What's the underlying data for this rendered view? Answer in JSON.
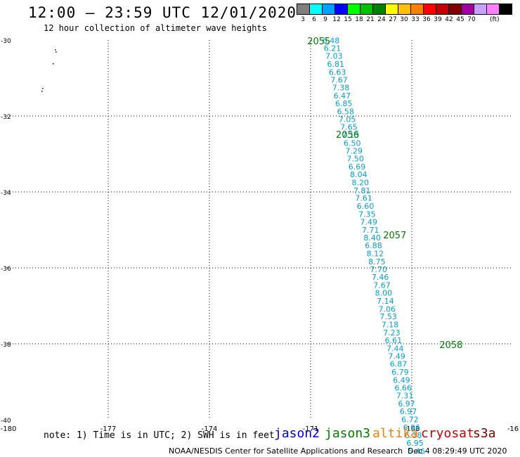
{
  "header": {
    "title": "12:00 – 23:59 UTC 12/01/2020",
    "subtitle": "12 hour collection of altimeter wave heights"
  },
  "color_scale": {
    "unit": "(ft)",
    "bins": [
      {
        "label": "3",
        "color": "#7f7f7f"
      },
      {
        "label": "6",
        "color": "#00ffff"
      },
      {
        "label": "9",
        "color": "#00a0ff"
      },
      {
        "label": "12",
        "color": "#0000ff"
      },
      {
        "label": "15",
        "color": "#00ff00"
      },
      {
        "label": "18",
        "color": "#00c000"
      },
      {
        "label": "21",
        "color": "#008000"
      },
      {
        "label": "24",
        "color": "#ffff00"
      },
      {
        "label": "27",
        "color": "#ffc000"
      },
      {
        "label": "30",
        "color": "#ff8000"
      },
      {
        "label": "33",
        "color": "#ff0000"
      },
      {
        "label": "36",
        "color": "#c00000"
      },
      {
        "label": "39",
        "color": "#800000"
      },
      {
        "label": "42",
        "color": "#a000a0"
      },
      {
        "label": "45",
        "color": "#c8a0ff"
      },
      {
        "label": "70",
        "color": "#ff80ff"
      },
      {
        "label": "",
        "color": "#000000"
      }
    ]
  },
  "chart_data": {
    "type": "scatter",
    "x_ticks": [
      "-180",
      "-177",
      "-174",
      "-171",
      "-168",
      "-16"
    ],
    "y_ticks": [
      "-30",
      "-32",
      "-34",
      "-36",
      "-38",
      "-40"
    ],
    "xlim": [
      -180,
      -165
    ],
    "ylim": [
      -40,
      -30
    ],
    "grid": true,
    "points": [
      {
        "x": -170.65,
        "y": -30.01,
        "label": "6.48"
      },
      {
        "x": -170.61,
        "y": -30.21,
        "label": "6.21"
      },
      {
        "x": -170.56,
        "y": -30.42,
        "label": "7.03"
      },
      {
        "x": -170.51,
        "y": -30.63,
        "label": "6.81"
      },
      {
        "x": -170.46,
        "y": -30.84,
        "label": "6.63"
      },
      {
        "x": -170.41,
        "y": -31.05,
        "label": "7.67"
      },
      {
        "x": -170.36,
        "y": -31.25,
        "label": "7.38"
      },
      {
        "x": -170.32,
        "y": -31.46,
        "label": "6.47"
      },
      {
        "x": -170.27,
        "y": -31.67,
        "label": "6.85"
      },
      {
        "x": -170.22,
        "y": -31.88,
        "label": "6.58"
      },
      {
        "x": -170.17,
        "y": -32.08,
        "label": "7.05"
      },
      {
        "x": -170.12,
        "y": -32.29,
        "label": "7.65"
      },
      {
        "x": -170.07,
        "y": -32.5,
        "label": "7.13"
      },
      {
        "x": -170.02,
        "y": -32.71,
        "label": "6.50"
      },
      {
        "x": -169.97,
        "y": -32.92,
        "label": "7.29"
      },
      {
        "x": -169.93,
        "y": -33.12,
        "label": "7.50"
      },
      {
        "x": -169.88,
        "y": -33.33,
        "label": "6.69"
      },
      {
        "x": -169.83,
        "y": -33.54,
        "label": "8.04"
      },
      {
        "x": -169.78,
        "y": -33.75,
        "label": "8.20"
      },
      {
        "x": -169.73,
        "y": -33.96,
        "label": "7.81"
      },
      {
        "x": -169.68,
        "y": -34.16,
        "label": "7.61"
      },
      {
        "x": -169.63,
        "y": -34.37,
        "label": "6.60"
      },
      {
        "x": -169.58,
        "y": -34.58,
        "label": "7.35"
      },
      {
        "x": -169.53,
        "y": -34.79,
        "label": "7.49"
      },
      {
        "x": -169.48,
        "y": -35.0,
        "label": "7.71"
      },
      {
        "x": -169.43,
        "y": -35.2,
        "label": "8.40"
      },
      {
        "x": -169.39,
        "y": -35.41,
        "label": "6.88"
      },
      {
        "x": -169.34,
        "y": -35.62,
        "label": "8.12"
      },
      {
        "x": -169.29,
        "y": -35.83,
        "label": "8.75"
      },
      {
        "x": -169.24,
        "y": -36.04,
        "label": "7.70"
      },
      {
        "x": -169.19,
        "y": -36.24,
        "label": "7.46"
      },
      {
        "x": -169.14,
        "y": -36.45,
        "label": "7.67"
      },
      {
        "x": -169.09,
        "y": -36.66,
        "label": "8.00"
      },
      {
        "x": -169.04,
        "y": -36.87,
        "label": "7.14"
      },
      {
        "x": -168.99,
        "y": -37.08,
        "label": "7.06"
      },
      {
        "x": -168.95,
        "y": -37.28,
        "label": "7.53"
      },
      {
        "x": -168.9,
        "y": -37.49,
        "label": "7.18"
      },
      {
        "x": -168.85,
        "y": -37.7,
        "label": "7.23"
      },
      {
        "x": -168.8,
        "y": -37.91,
        "label": "6.61"
      },
      {
        "x": -168.75,
        "y": -38.12,
        "label": "7.44"
      },
      {
        "x": -168.7,
        "y": -38.32,
        "label": "7.49"
      },
      {
        "x": -168.65,
        "y": -38.53,
        "label": "6.87"
      },
      {
        "x": -168.6,
        "y": -38.74,
        "label": "6.79"
      },
      {
        "x": -168.56,
        "y": -38.95,
        "label": "6.49"
      },
      {
        "x": -168.51,
        "y": -39.16,
        "label": "6.66"
      },
      {
        "x": -168.46,
        "y": -39.36,
        "label": "7.31"
      },
      {
        "x": -168.41,
        "y": -39.57,
        "label": "6.97"
      },
      {
        "x": -168.36,
        "y": -39.78,
        "label": "6.97"
      },
      {
        "x": -168.31,
        "y": -39.99,
        "label": "6.72"
      },
      {
        "x": -168.26,
        "y": -40.2,
        "label": "6.96"
      },
      {
        "x": -168.21,
        "y": -40.41,
        "label": "6.38"
      },
      {
        "x": -168.16,
        "y": -40.61,
        "label": "6.95"
      },
      {
        "x": -168.11,
        "y": -40.82,
        "label": "5.46"
      }
    ],
    "time_labels": [
      {
        "x": -171.1,
        "y": -30.02,
        "label": "2055"
      },
      {
        "x": -170.25,
        "y": -32.48,
        "label": "2056"
      },
      {
        "x": -168.85,
        "y": -35.13,
        "label": "2057"
      },
      {
        "x": -167.18,
        "y": -38.02,
        "label": "2058"
      }
    ]
  },
  "notes": {
    "text": "note: 1) Time is in UTC; 2) SWH is in feet"
  },
  "satellites": [
    {
      "name": "jason2",
      "color": "#0000cc"
    },
    {
      "name": "jason3",
      "color": "#008000"
    },
    {
      "name": "altika",
      "color": "#ff8000"
    },
    {
      "name": "cryosat",
      "color": "#cc0000"
    },
    {
      "name": "s3a",
      "color": "#800000"
    }
  ],
  "footer": {
    "credit": "NOAA/NESDIS Center for Satellite Applications and Research",
    "timestamp": "Dec  4 08:29:49 UTC 2020"
  }
}
